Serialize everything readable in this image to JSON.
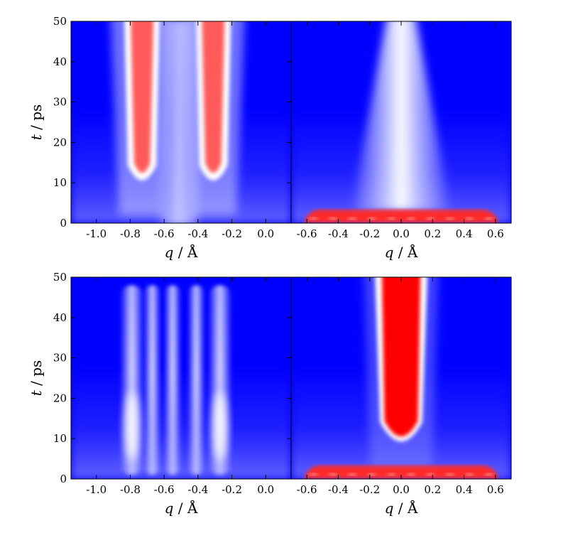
{
  "chart_data": [
    {
      "type": "heatmap",
      "panel": "top-left",
      "xlabel_var": "q",
      "xlabel_unit": " / Å",
      "ylabel_var": "t",
      "ylabel_unit": " / ps",
      "xlim": [
        -1.15,
        0.15
      ],
      "ylim": [
        0,
        50
      ],
      "xticks": [
        -1.0,
        -0.8,
        -0.6,
        -0.4,
        -0.2,
        0.0
      ],
      "xtick_labels": [
        "-1.0",
        "-0.8",
        "-0.6",
        "-0.4",
        "-0.2",
        "0.0"
      ],
      "yticks": [
        0,
        10,
        20,
        30,
        40,
        50
      ],
      "ytick_labels": [
        "0",
        "10",
        "20",
        "30",
        "40",
        "50"
      ],
      "features": [
        {
          "kind": "ridge",
          "x": -0.73,
          "t_start": 10,
          "intensity": "high"
        },
        {
          "kind": "ridge",
          "x": -0.31,
          "t_start": 10,
          "intensity": "high"
        },
        {
          "kind": "band",
          "x_from": -0.62,
          "x_to": -0.4,
          "intensity": "low"
        }
      ]
    },
    {
      "type": "heatmap",
      "panel": "top-right",
      "xlabel_var": "q",
      "xlabel_unit": " / Å",
      "xlim": [
        -0.7,
        0.7
      ],
      "ylim": [
        0,
        50
      ],
      "xticks": [
        -0.6,
        -0.4,
        -0.2,
        0.0,
        0.2,
        0.4,
        0.6
      ],
      "xtick_labels": [
        "-0.6",
        "-0.4",
        "-0.2",
        "0.0",
        "0.2",
        "0.4",
        "0.6"
      ],
      "features": [
        {
          "kind": "central-plume",
          "x": 0.0,
          "intensity": "medium"
        },
        {
          "kind": "base-band",
          "x_from": -0.62,
          "x_to": 0.62,
          "t_to": 3,
          "intensity": "high"
        }
      ]
    },
    {
      "type": "heatmap",
      "panel": "bottom-left",
      "xlabel_var": "q",
      "xlabel_unit": " / Å",
      "ylabel_var": "t",
      "ylabel_unit": " / ps",
      "xlim": [
        -1.15,
        0.15
      ],
      "ylim": [
        0,
        50
      ],
      "xticks": [
        -1.0,
        -0.8,
        -0.6,
        -0.4,
        -0.2,
        0.0
      ],
      "xtick_labels": [
        "-1.0",
        "-0.8",
        "-0.6",
        "-0.4",
        "-0.2",
        "0.0"
      ],
      "yticks": [
        0,
        10,
        20,
        30,
        40,
        50
      ],
      "ytick_labels": [
        "0",
        "10",
        "20",
        "30",
        "40",
        "50"
      ],
      "features": [
        {
          "kind": "stripe",
          "x": -0.79,
          "intensity": "medium"
        },
        {
          "kind": "stripe",
          "x": -0.67,
          "intensity": "low"
        },
        {
          "kind": "stripe",
          "x": -0.55,
          "intensity": "low"
        },
        {
          "kind": "stripe",
          "x": -0.41,
          "intensity": "low"
        },
        {
          "kind": "stripe",
          "x": -0.27,
          "intensity": "medium"
        }
      ]
    },
    {
      "type": "heatmap",
      "panel": "bottom-right",
      "xlabel_var": "q",
      "xlabel_unit": " / Å",
      "xlim": [
        -0.7,
        0.7
      ],
      "ylim": [
        0,
        50
      ],
      "xticks": [
        -0.6,
        -0.4,
        -0.2,
        0.0,
        0.2,
        0.4,
        0.6
      ],
      "xtick_labels": [
        "-0.6",
        "-0.4",
        "-0.2",
        "0.0",
        "0.2",
        "0.4",
        "0.6"
      ],
      "features": [
        {
          "kind": "central-column",
          "x_from": -0.14,
          "x_to": 0.14,
          "t_start": 7,
          "intensity": "high"
        },
        {
          "kind": "base-band",
          "x_from": -0.62,
          "x_to": 0.62,
          "t_to": 3,
          "intensity": "high"
        }
      ]
    }
  ],
  "colors": {
    "background": "#0000ff",
    "mid": "#ffffff",
    "high": "#ff0000"
  }
}
